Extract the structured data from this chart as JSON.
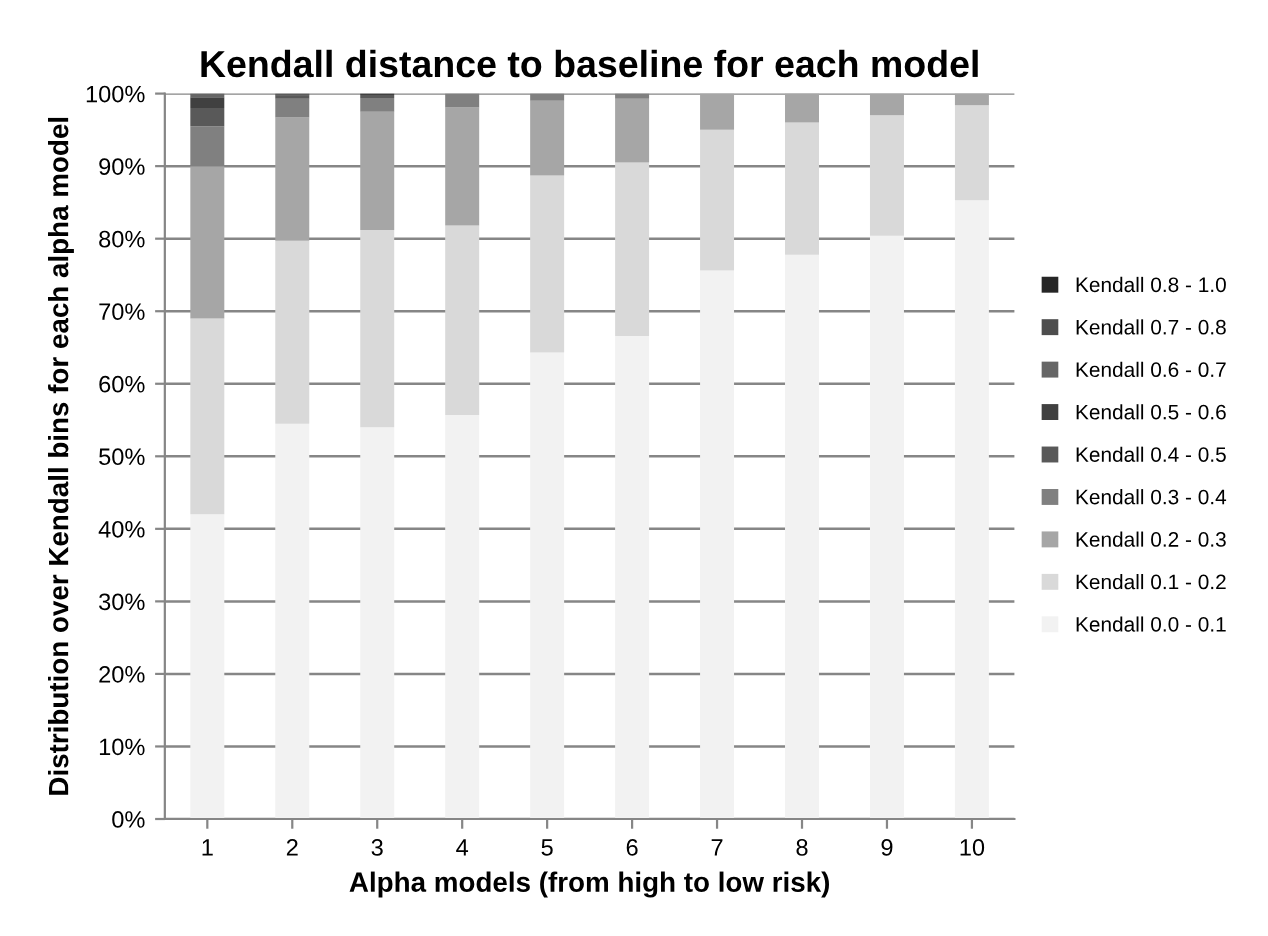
{
  "chart_data": {
    "type": "bar",
    "stacked": true,
    "title": "Kendall distance to baseline for each model",
    "xlabel": "Alpha models (from high to low risk)",
    "ylabel": "Distribution over Kendall bins for each alpha model",
    "categories": [
      "1",
      "2",
      "3",
      "4",
      "5",
      "6",
      "7",
      "8",
      "9",
      "10"
    ],
    "series": [
      {
        "name": "Kendall 0.0 - 0.1",
        "color": "#f2f2f2",
        "values": [
          42,
          54.5,
          54,
          55.7,
          64.3,
          66.6,
          75.6,
          77.8,
          80.4,
          85.3
        ]
      },
      {
        "name": "Kendall 0.1 - 0.2",
        "color": "#d9d9d9",
        "values": [
          27,
          25.2,
          27.2,
          26.1,
          24.4,
          23.9,
          19.4,
          18.2,
          16.6,
          13.1
        ]
      },
      {
        "name": "Kendall 0.2 - 0.3",
        "color": "#a6a6a6",
        "values": [
          21,
          17,
          16.3,
          16.3,
          10.3,
          8.8,
          5,
          4,
          3,
          1.6
        ]
      },
      {
        "name": "Kendall 0.3 - 0.4",
        "color": "#808080",
        "values": [
          5.5,
          2.6,
          1.9,
          1.9,
          1,
          0.7,
          0,
          0,
          0,
          0
        ]
      },
      {
        "name": "Kendall 0.4 - 0.5",
        "color": "#595959",
        "values": [
          2.5,
          0.4,
          0.4,
          0,
          0,
          0,
          0,
          0,
          0,
          0
        ]
      },
      {
        "name": "Kendall 0.5 - 0.6",
        "color": "#404040",
        "values": [
          1.5,
          0.2,
          0.2,
          0,
          0,
          0,
          0,
          0,
          0,
          0
        ]
      },
      {
        "name": "Kendall 0.6 - 0.7",
        "color": "#666666",
        "values": [
          0.5,
          0.1,
          0,
          0,
          0,
          0,
          0,
          0,
          0,
          0
        ]
      },
      {
        "name": "Kendall 0.7 - 0.8",
        "color": "#4d4d4d",
        "values": [
          0,
          0,
          0,
          0,
          0,
          0,
          0,
          0,
          0,
          0
        ]
      },
      {
        "name": "Kendall 0.8 - 1.0",
        "color": "#262626",
        "values": [
          0,
          0,
          0,
          0,
          0,
          0,
          0,
          0,
          0,
          0
        ]
      }
    ],
    "ylim": [
      0,
      100
    ],
    "yticks": [
      {
        "value": 0,
        "label": "0%"
      },
      {
        "value": 10,
        "label": "10%"
      },
      {
        "value": 20,
        "label": "20%"
      },
      {
        "value": 30,
        "label": "30%"
      },
      {
        "value": 40,
        "label": "40%"
      },
      {
        "value": 50,
        "label": "50%"
      },
      {
        "value": 60,
        "label": "60%"
      },
      {
        "value": 70,
        "label": "70%"
      },
      {
        "value": 80,
        "label": "80%"
      },
      {
        "value": 90,
        "label": "90%"
      },
      {
        "value": 100,
        "label": "100%"
      }
    ],
    "grid": "y",
    "legend": "right"
  }
}
